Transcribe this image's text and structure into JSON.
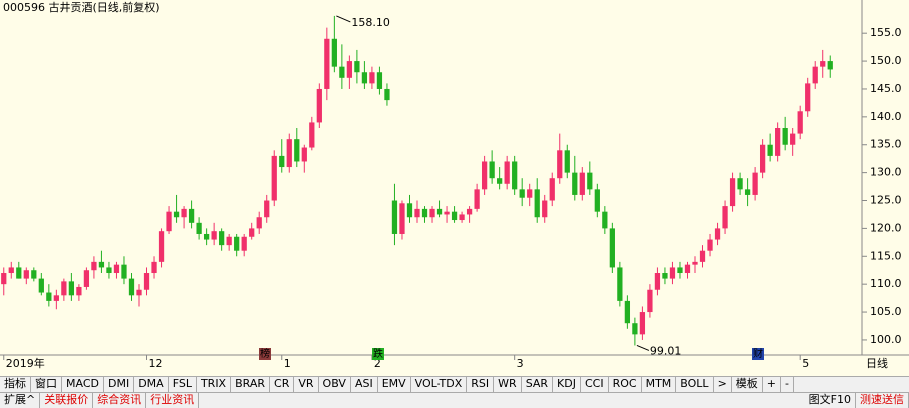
{
  "chart_data": {
    "type": "candlestick",
    "title": "000596 古井贡酒(日线,前复权)",
    "categories": [
      "2019年",
      null,
      null,
      null,
      null,
      null,
      null,
      null,
      null,
      null,
      null,
      null,
      null,
      null,
      null,
      null,
      null,
      null,
      null,
      "12",
      null,
      null,
      null,
      null,
      null,
      null,
      null,
      null,
      null,
      null,
      null,
      null,
      null,
      null,
      null,
      null,
      null,
      "1",
      null,
      null,
      null,
      null,
      null,
      null,
      null,
      null,
      null,
      null,
      null,
      "2",
      null,
      null,
      null,
      null,
      null,
      null,
      null,
      null,
      null,
      null,
      null,
      null,
      null,
      null,
      null,
      null,
      null,
      null,
      "3",
      null,
      null,
      null,
      null,
      null,
      null,
      null,
      null,
      null,
      null,
      null,
      null,
      null,
      null,
      null,
      null,
      null,
      null,
      null,
      null,
      null,
      null,
      null,
      null,
      null,
      null,
      null,
      null,
      null,
      null,
      null,
      null,
      null,
      null,
      null,
      null,
      null,
      "5",
      null,
      null,
      null,
      null,
      null
    ],
    "ohlc": [
      [
        110,
        113,
        108,
        112
      ],
      [
        112,
        114,
        111,
        113
      ],
      [
        113,
        114,
        111,
        111
      ],
      [
        111,
        113,
        110,
        112.5
      ],
      [
        112.5,
        113,
        110.5,
        111
      ],
      [
        111,
        112,
        108,
        108.5
      ],
      [
        108.5,
        110,
        106,
        107
      ],
      [
        107,
        109,
        105.5,
        108
      ],
      [
        108,
        111,
        107,
        110.5
      ],
      [
        110.5,
        112,
        107,
        108
      ],
      [
        108,
        110,
        107,
        109.5
      ],
      [
        109.5,
        113,
        109,
        112.5
      ],
      [
        112.5,
        115,
        111,
        114
      ],
      [
        114,
        116,
        112,
        113
      ],
      [
        113,
        114,
        111,
        112
      ],
      [
        112,
        114,
        111,
        113.5
      ],
      [
        113.5,
        115,
        110,
        111
      ],
      [
        111,
        112,
        107,
        108
      ],
      [
        108,
        110,
        106,
        109
      ],
      [
        109,
        113,
        108,
        112
      ],
      [
        112,
        115,
        111,
        114
      ],
      [
        114,
        120,
        113,
        119.5
      ],
      [
        119.5,
        124,
        119,
        123
      ],
      [
        123,
        126,
        121,
        122
      ],
      [
        122,
        124,
        120,
        123.5
      ],
      [
        123.5,
        125,
        120,
        121
      ],
      [
        121,
        122,
        118,
        119
      ],
      [
        119,
        120,
        117,
        118
      ],
      [
        118,
        121,
        117,
        119.5
      ],
      [
        119.5,
        120,
        116,
        117
      ],
      [
        117,
        119,
        116,
        118.5
      ],
      [
        118.5,
        119,
        115,
        116
      ],
      [
        116,
        119,
        115,
        118.5
      ],
      [
        118.5,
        121,
        118,
        120
      ],
      [
        120,
        123,
        119,
        122
      ],
      [
        122,
        126,
        121,
        125
      ],
      [
        125,
        134,
        124,
        133
      ],
      [
        133,
        136,
        130,
        131
      ],
      [
        131,
        137,
        130,
        136
      ],
      [
        136,
        138,
        131,
        132
      ],
      [
        132,
        135,
        130,
        134.5
      ],
      [
        134.5,
        140,
        134,
        139
      ],
      [
        139,
        146,
        138,
        145
      ],
      [
        145,
        156,
        143,
        154
      ],
      [
        154,
        158.1,
        148,
        149
      ],
      [
        149,
        153,
        145,
        147
      ],
      [
        147,
        151,
        145,
        150
      ],
      [
        150,
        152,
        146,
        148
      ],
      [
        148,
        150,
        145,
        146
      ],
      [
        146,
        149,
        145,
        148
      ],
      [
        148,
        149,
        144,
        145
      ],
      [
        145,
        146,
        142,
        143
      ],
      [
        125,
        128,
        117,
        119
      ],
      [
        119,
        125,
        118,
        124.5
      ],
      [
        124.5,
        126,
        121,
        122
      ],
      [
        122,
        125,
        121,
        123.5
      ],
      [
        123.5,
        124,
        121,
        122
      ],
      [
        122,
        124,
        121,
        123.5
      ],
      [
        123.5,
        125,
        122,
        122.5
      ],
      [
        122.5,
        124,
        121,
        123
      ],
      [
        123,
        124,
        121,
        121.5
      ],
      [
        121.5,
        123,
        121,
        122.5
      ],
      [
        122.5,
        124,
        121,
        123.5
      ],
      [
        123.5,
        128,
        123,
        127
      ],
      [
        127,
        133,
        126,
        132
      ],
      [
        132,
        134,
        128,
        129
      ],
      [
        129,
        131,
        127,
        128
      ],
      [
        128,
        133,
        127,
        132
      ],
      [
        132,
        133,
        126,
        127
      ],
      [
        127,
        129,
        124,
        125.5
      ],
      [
        125.5,
        128,
        124,
        127
      ],
      [
        127,
        129,
        121,
        122
      ],
      [
        122,
        126,
        121,
        125
      ],
      [
        125,
        130,
        124,
        129
      ],
      [
        129,
        137,
        128,
        134
      ],
      [
        134,
        135,
        129,
        130
      ],
      [
        130,
        133,
        125,
        126
      ],
      [
        126,
        131,
        125,
        130
      ],
      [
        130,
        132,
        126,
        127
      ],
      [
        127,
        128,
        122,
        123
      ],
      [
        123,
        124,
        119,
        120
      ],
      [
        120,
        121,
        112,
        113
      ],
      [
        113,
        114,
        106,
        107
      ],
      [
        107,
        108,
        102,
        103
      ],
      [
        103,
        104,
        99.01,
        101
      ],
      [
        101,
        106,
        100,
        105
      ],
      [
        105,
        110,
        104,
        109
      ],
      [
        109,
        113,
        108,
        112
      ],
      [
        112,
        113,
        110,
        111
      ],
      [
        111,
        114,
        110,
        113
      ],
      [
        113,
        114,
        111,
        112
      ],
      [
        112,
        114,
        111,
        113.5
      ],
      [
        113.5,
        115,
        112,
        114
      ],
      [
        114,
        117,
        113,
        116
      ],
      [
        116,
        119,
        115,
        118
      ],
      [
        118,
        121,
        117,
        120
      ],
      [
        120,
        125,
        119,
        124
      ],
      [
        124,
        130,
        123,
        129
      ],
      [
        129,
        130,
        126,
        127
      ],
      [
        127,
        129,
        124,
        126
      ],
      [
        126,
        131,
        125,
        130
      ],
      [
        130,
        136,
        129,
        135
      ],
      [
        135,
        137,
        132,
        133
      ],
      [
        133,
        139,
        132,
        138
      ],
      [
        138,
        140,
        134,
        135
      ],
      [
        135,
        138,
        133,
        137
      ],
      [
        137,
        142,
        136,
        141
      ],
      [
        141,
        147,
        140,
        146
      ],
      [
        146,
        150,
        145,
        149
      ],
      [
        149,
        152,
        147,
        150
      ],
      [
        150,
        151,
        147,
        148.5
      ]
    ],
    "high_label": "158.10",
    "low_label": "99.01",
    "up_color": "#f0306a",
    "down_color": "#22b022",
    "ylim": [
      97.3,
      158.8
    ],
    "yticks": [
      {
        "value": 100,
        "label": "100.0"
      },
      {
        "value": 105,
        "label": "105.0"
      },
      {
        "value": 110,
        "label": "110.0"
      },
      {
        "value": 115,
        "label": "115.0"
      },
      {
        "value": 120,
        "label": "120.0"
      },
      {
        "value": 125,
        "label": "125.0"
      },
      {
        "value": 130,
        "label": "130.0"
      },
      {
        "value": 135,
        "label": "135.0"
      },
      {
        "value": 140,
        "label": "140.0"
      },
      {
        "value": 145,
        "label": "145.0"
      },
      {
        "value": 150,
        "label": "150.0"
      },
      {
        "value": 155,
        "label": "155.0"
      }
    ],
    "period": "日线"
  },
  "markers": [
    "榜",
    "跌",
    "财"
  ],
  "tabs": [
    "指标",
    "窗口",
    "MACD",
    "DMI",
    "DMA",
    "FSL",
    "TRIX",
    "BRAR",
    "CR",
    "VR",
    "OBV",
    "ASI",
    "EMV",
    "VOL-TDX",
    "RSI",
    "WR",
    "SAR",
    "KDJ",
    "CCI",
    "ROC",
    "MTM",
    "BOLL",
    ">",
    "模板",
    "+",
    "-"
  ],
  "links": [
    "扩展^",
    "关联报价",
    "综合资讯",
    "行业资讯"
  ],
  "right_links": [
    "图文F10",
    "测速送信"
  ]
}
